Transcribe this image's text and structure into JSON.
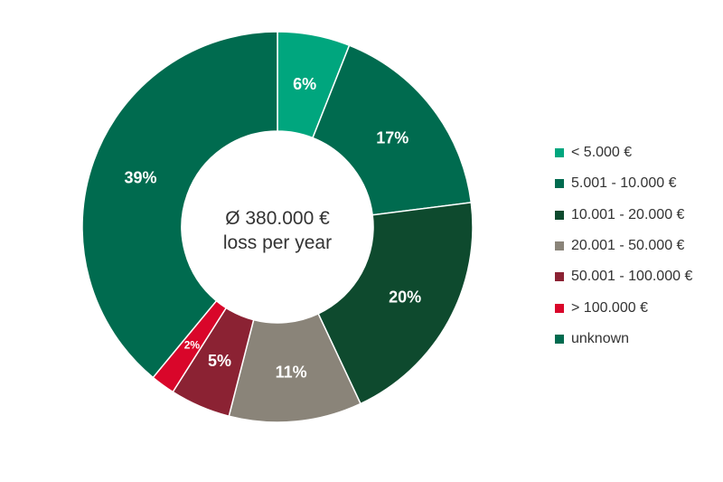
{
  "chart_data": {
    "type": "pie",
    "donut": true,
    "center_label": [
      "Ø 380.000 €",
      "loss per year"
    ],
    "categories": [
      "< 5.000 €",
      "5.001 - 10.000 €",
      "10.001 - 20.000 €",
      "20.001 - 50.000 €",
      "50.001 - 100.000 €",
      "> 100.000 €",
      "unknown"
    ],
    "values": [
      6,
      17,
      20,
      11,
      5,
      2,
      39
    ],
    "data_labels": [
      "6%",
      "17%",
      "20%",
      "11%",
      "5%",
      "2%",
      "39%"
    ],
    "colors": [
      "#00A67E",
      "#006B4F",
      "#0E4A2E",
      "#8A8479",
      "#8B2233",
      "#D9062A",
      "#006B4F"
    ],
    "legend": "right"
  }
}
